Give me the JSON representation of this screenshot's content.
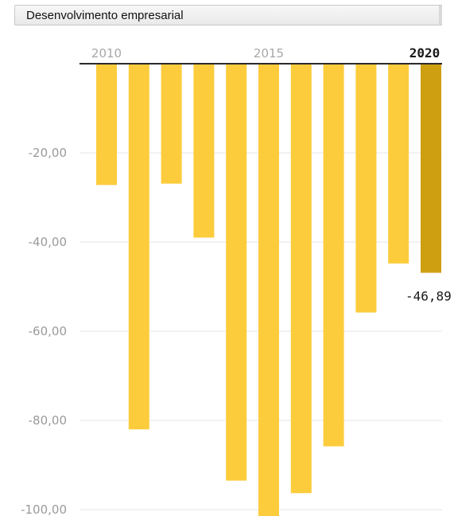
{
  "header": {
    "title": "Desenvolvimento empresarial"
  },
  "chart_data": {
    "type": "bar",
    "categories": [
      "2010",
      "2011",
      "2012",
      "2013",
      "2014",
      "2015",
      "2016",
      "2017",
      "2018",
      "2019",
      "2020"
    ],
    "values": [
      -27.2,
      -82.0,
      -26.9,
      -39.0,
      -93.5,
      -101.8,
      -96.3,
      -85.8,
      -55.8,
      -44.8,
      -46.89
    ],
    "highlight_index": 10,
    "highlight_label": "-46,89",
    "x_tick_labels": [
      {
        "index": 0,
        "label": "2010"
      },
      {
        "index": 5,
        "label": "2015"
      },
      {
        "index": 10,
        "label": "2020"
      }
    ],
    "y_ticks": [
      -20,
      -40,
      -60,
      -80,
      -100
    ],
    "y_tick_labels": [
      "-20,00",
      "-40,00",
      "-60,00",
      "-80,00",
      "-100,00"
    ],
    "ylim": [
      -103,
      0
    ],
    "grid": true,
    "colors": {
      "bar": "#fccc3c",
      "highlight": "#cf9f12",
      "grid": "#e6e6e6",
      "axis": "#2a2a2a"
    }
  }
}
